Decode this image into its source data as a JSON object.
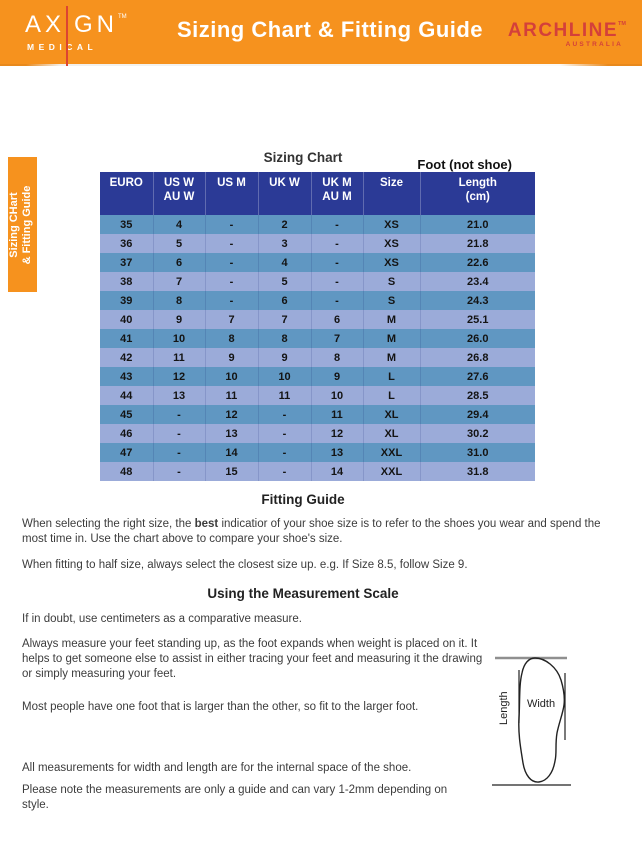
{
  "colors": {
    "banner_orange": "#F6921E",
    "archline_red": "#D4403A",
    "axign_line_red": "#DC4432",
    "table_header_blue": "#2B3A96",
    "row_blue": "#6097C2",
    "row_periwinkle": "#9BABD9"
  },
  "banner": {
    "axign_left": "AX",
    "axign_right": "GN",
    "axign_tm": "TM",
    "axign_sub": "MEDICAL",
    "title": "Sizing Chart & Fitting Guide",
    "archline": "ARCHLINE",
    "archline_tm": "TM",
    "archline_sub": "AUSTRALIA"
  },
  "side_tab": {
    "line1": "Sizing CHart",
    "line2": "& Fitting Guide"
  },
  "sizing_chart": {
    "title": "Sizing Chart",
    "foot_label": "Foot (not shoe)",
    "columns": [
      [
        "EURO"
      ],
      [
        "US W",
        "AU W"
      ],
      [
        "US M"
      ],
      [
        "UK W"
      ],
      [
        "UK M",
        "AU M"
      ],
      [
        "Size"
      ],
      [
        "Length",
        "(cm)"
      ]
    ],
    "rows": [
      [
        "35",
        "4",
        "-",
        "2",
        "-",
        "XS",
        "21.0"
      ],
      [
        "36",
        "5",
        "-",
        "3",
        "-",
        "XS",
        "21.8"
      ],
      [
        "37",
        "6",
        "-",
        "4",
        "-",
        "XS",
        "22.6"
      ],
      [
        "38",
        "7",
        "-",
        "5",
        "-",
        "S",
        "23.4"
      ],
      [
        "39",
        "8",
        "-",
        "6",
        "-",
        "S",
        "24.3"
      ],
      [
        "40",
        "9",
        "7",
        "7",
        "6",
        "M",
        "25.1"
      ],
      [
        "41",
        "10",
        "8",
        "8",
        "7",
        "M",
        "26.0"
      ],
      [
        "42",
        "11",
        "9",
        "9",
        "8",
        "M",
        "26.8"
      ],
      [
        "43",
        "12",
        "10",
        "10",
        "9",
        "L",
        "27.6"
      ],
      [
        "44",
        "13",
        "11",
        "11",
        "10",
        "L",
        "28.5"
      ],
      [
        "45",
        "-",
        "12",
        "-",
        "11",
        "XL",
        "29.4"
      ],
      [
        "46",
        "-",
        "13",
        "-",
        "12",
        "XL",
        "30.2"
      ],
      [
        "47",
        "-",
        "14",
        "-",
        "13",
        "XXL",
        "31.0"
      ],
      [
        "48",
        "-",
        "15",
        "-",
        "14",
        "XXL",
        "31.8"
      ]
    ]
  },
  "fitting_guide": {
    "title": "Fitting Guide",
    "p1_before": "When selecting the right size, the ",
    "p1_bold": "best",
    "p1_after": " indicatior of your shoe size is to refer to the shoes you wear and spend the most time in. Use the chart above to compare your shoe's size.",
    "p2": "When fitting to half size, always select the closest size up. e.g. If Size 8.5, follow Size 9."
  },
  "measurement_scale": {
    "title": "Using the Measurement Scale",
    "p1": "If in doubt, use centimeters as a comparative measure.",
    "p2": "Always measure your feet standing up, as the foot expands when weight is placed on it. It helps to get someone else to assist in either tracing your feet and measuring it the drawing or simply measuring your feet.",
    "p3": "Most people have one foot that is larger than the other, so fit to the larger foot.",
    "p4": "All measurements for width and length are for the internal space of the shoe.",
    "p5": "Please note the measurements are only a guide and can vary 1-2mm depending on style."
  },
  "diagram": {
    "length_label": "Length",
    "width_label": "Width"
  }
}
